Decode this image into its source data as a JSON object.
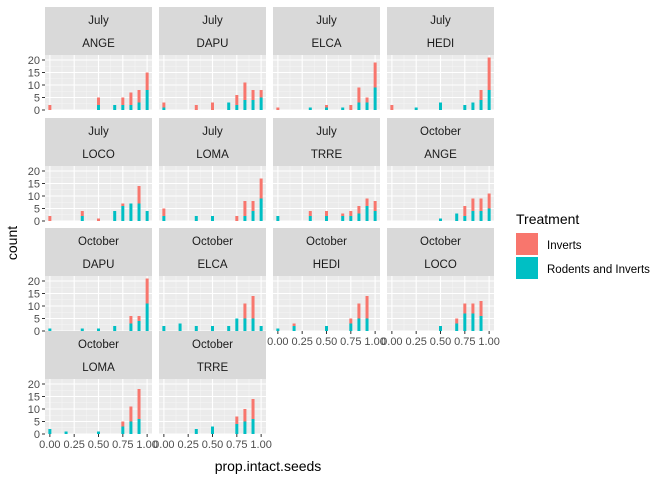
{
  "chart_data": {
    "type": "bar",
    "stacked": true,
    "xlabel": "prop.intact.seeds",
    "ylabel": "count",
    "xticks": [
      0.0,
      0.25,
      0.5,
      0.75,
      1.0
    ],
    "xtick_labels": [
      "0.00",
      "0.25",
      "0.50",
      "0.75",
      "1.00"
    ],
    "yticks": [
      0,
      5,
      10,
      15,
      20
    ],
    "ylim": [
      0,
      22
    ],
    "x": [
      0,
      0.0833,
      0.1667,
      0.25,
      0.3333,
      0.4167,
      0.5,
      0.5833,
      0.6667,
      0.75,
      0.8333,
      0.9167,
      1.0
    ],
    "grid": true,
    "legend": {
      "title": "Treatment",
      "position": "right",
      "entries": [
        {
          "name": "Inverts",
          "color": "#F8766D"
        },
        {
          "name": "Rodents and Inverts",
          "color": "#00BFC4"
        }
      ]
    },
    "panels": [
      {
        "month": "July",
        "species": "ANGE",
        "inverts": [
          2,
          0,
          0,
          0,
          0,
          0,
          3,
          0,
          0,
          3,
          5,
          5,
          7
        ],
        "rodents": [
          0,
          0,
          0,
          0,
          0,
          0,
          2,
          0,
          2,
          2,
          2,
          3,
          8
        ]
      },
      {
        "month": "July",
        "species": "DAPU",
        "inverts": [
          2,
          0,
          0,
          0,
          2,
          0,
          3,
          0,
          0,
          4,
          7,
          4,
          3
        ],
        "rodents": [
          1,
          0,
          0,
          0,
          0,
          0,
          0,
          0,
          3,
          2,
          4,
          4,
          5
        ]
      },
      {
        "month": "July",
        "species": "ELCA",
        "inverts": [
          1,
          0,
          0,
          0,
          0,
          0,
          1,
          0,
          0,
          2,
          6,
          2,
          10
        ],
        "rodents": [
          0,
          0,
          0,
          0,
          1,
          0,
          1,
          0,
          1,
          0,
          3,
          3,
          9
        ]
      },
      {
        "month": "July",
        "species": "HEDI",
        "inverts": [
          2,
          0,
          0,
          0,
          0,
          0,
          0,
          0,
          0,
          0,
          0,
          4,
          13
        ],
        "rodents": [
          0,
          0,
          0,
          1,
          0,
          0,
          3,
          0,
          0,
          2,
          3,
          4,
          8
        ]
      },
      {
        "month": "July",
        "species": "LOCO",
        "inverts": [
          2,
          0,
          0,
          0,
          2,
          0,
          1,
          0,
          0,
          1,
          0,
          7,
          0
        ],
        "rodents": [
          0,
          0,
          0,
          0,
          2,
          0,
          0,
          0,
          4,
          6,
          7,
          7,
          4
        ]
      },
      {
        "month": "July",
        "species": "LOMA",
        "inverts": [
          3,
          0,
          0,
          0,
          0,
          0,
          0,
          0,
          0,
          2,
          6,
          4,
          8
        ],
        "rodents": [
          2,
          0,
          0,
          0,
          2,
          0,
          2,
          0,
          0,
          0,
          2,
          4,
          9
        ]
      },
      {
        "month": "July",
        "species": "TRRE",
        "inverts": [
          0,
          0,
          0,
          0,
          2,
          0,
          2,
          0,
          1,
          2,
          3,
          3,
          4
        ],
        "rodents": [
          2,
          0,
          0,
          0,
          2,
          0,
          2,
          0,
          2,
          2,
          3,
          6,
          4
        ]
      },
      {
        "month": "October",
        "species": "ANGE",
        "inverts": [
          0,
          0,
          0,
          0,
          0,
          0,
          0,
          0,
          0,
          4,
          5,
          5,
          6
        ],
        "rodents": [
          0,
          0,
          0,
          0,
          0,
          0,
          1,
          0,
          3,
          2,
          4,
          4,
          5
        ]
      },
      {
        "month": "October",
        "species": "DAPU",
        "inverts": [
          0,
          0,
          0,
          0,
          0,
          0,
          0,
          0,
          0,
          0,
          3,
          2,
          10
        ],
        "rodents": [
          1,
          0,
          0,
          0,
          1,
          0,
          1,
          0,
          2,
          0,
          3,
          4,
          11
        ]
      },
      {
        "month": "October",
        "species": "ELCA",
        "inverts": [
          0,
          0,
          0,
          0,
          0,
          0,
          0,
          0,
          0,
          0,
          6,
          9,
          0
        ],
        "rodents": [
          2,
          0,
          3,
          0,
          2,
          0,
          2,
          0,
          2,
          5,
          5,
          5,
          2
        ]
      },
      {
        "month": "October",
        "species": "HEDI",
        "inverts": [
          0,
          0,
          1,
          0,
          0,
          0,
          0,
          0,
          0,
          2,
          6,
          9,
          0
        ],
        "rodents": [
          1,
          0,
          2,
          0,
          0,
          0,
          2,
          0,
          0,
          3,
          5,
          5,
          0
        ]
      },
      {
        "month": "October",
        "species": "LOCO",
        "inverts": [
          0,
          0,
          0,
          0,
          0,
          0,
          0,
          0,
          2,
          4,
          4,
          6,
          0
        ],
        "rodents": [
          0,
          0,
          0,
          0,
          0,
          0,
          2,
          0,
          3,
          7,
          7,
          6,
          0
        ]
      },
      {
        "month": "October",
        "species": "LOMA",
        "inverts": [
          0,
          0,
          0,
          0,
          0,
          0,
          0,
          0,
          0,
          2,
          6,
          12,
          0
        ],
        "rodents": [
          2,
          0,
          1,
          0,
          0,
          0,
          1,
          0,
          0,
          3,
          5,
          6,
          0
        ]
      },
      {
        "month": "October",
        "species": "TRRE",
        "inverts": [
          0,
          0,
          0,
          0,
          0,
          0,
          0,
          0,
          0,
          3,
          5,
          8,
          0
        ],
        "rodents": [
          0,
          0,
          0,
          0,
          2,
          0,
          3,
          0,
          0,
          4,
          5,
          6,
          0
        ]
      }
    ]
  }
}
